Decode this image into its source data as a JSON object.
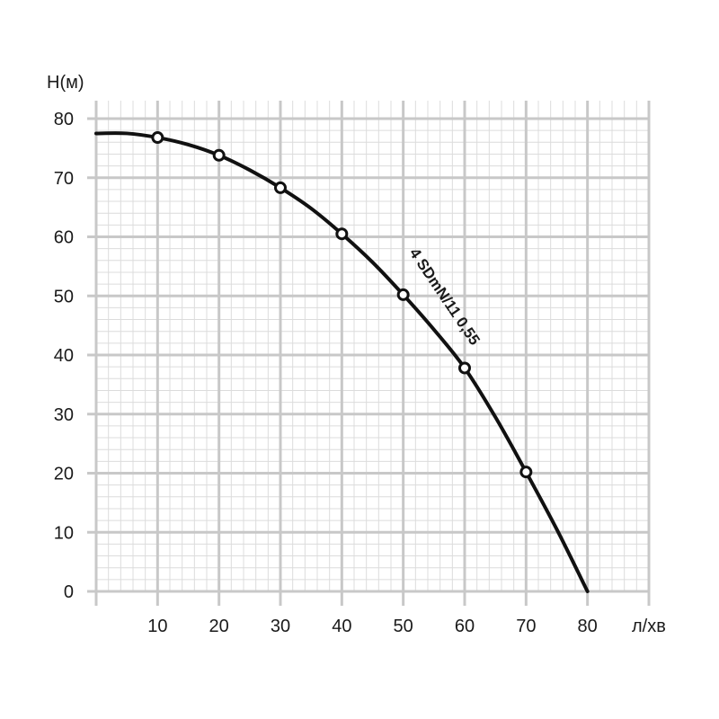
{
  "chart_data": {
    "type": "line",
    "xlabel": "л/хв",
    "ylabel": "H(м)",
    "xlim": [
      0,
      90
    ],
    "ylim": [
      0,
      80
    ],
    "x_ticks": [
      10,
      20,
      30,
      40,
      50,
      60,
      70,
      80
    ],
    "y_ticks": [
      0,
      10,
      20,
      30,
      40,
      50,
      60,
      70,
      80
    ],
    "grid": true,
    "minor_grid_step_x": 2,
    "minor_grid_step_y": 2,
    "series_label": "4 SDmN/11 0,55",
    "curve": {
      "x": [
        0,
        5,
        10,
        15,
        20,
        25,
        30,
        35,
        40,
        45,
        50,
        55,
        60,
        65,
        70,
        75,
        80
      ],
      "y": [
        77.5,
        77.5,
        76.8,
        75.6,
        73.8,
        71.3,
        68.3,
        64.8,
        60.5,
        55.7,
        50.2,
        44.3,
        37.8,
        29.5,
        20.2,
        10.5,
        0
      ]
    },
    "markers": {
      "x": [
        10,
        20,
        30,
        40,
        50,
        60,
        70
      ],
      "y": [
        76.8,
        73.8,
        68.3,
        60.5,
        50.2,
        37.8,
        20.2
      ]
    },
    "colors": {
      "grid_major": "#c8c8c8",
      "grid_minor": "#dcdcdc",
      "curve": "#111111"
    }
  }
}
